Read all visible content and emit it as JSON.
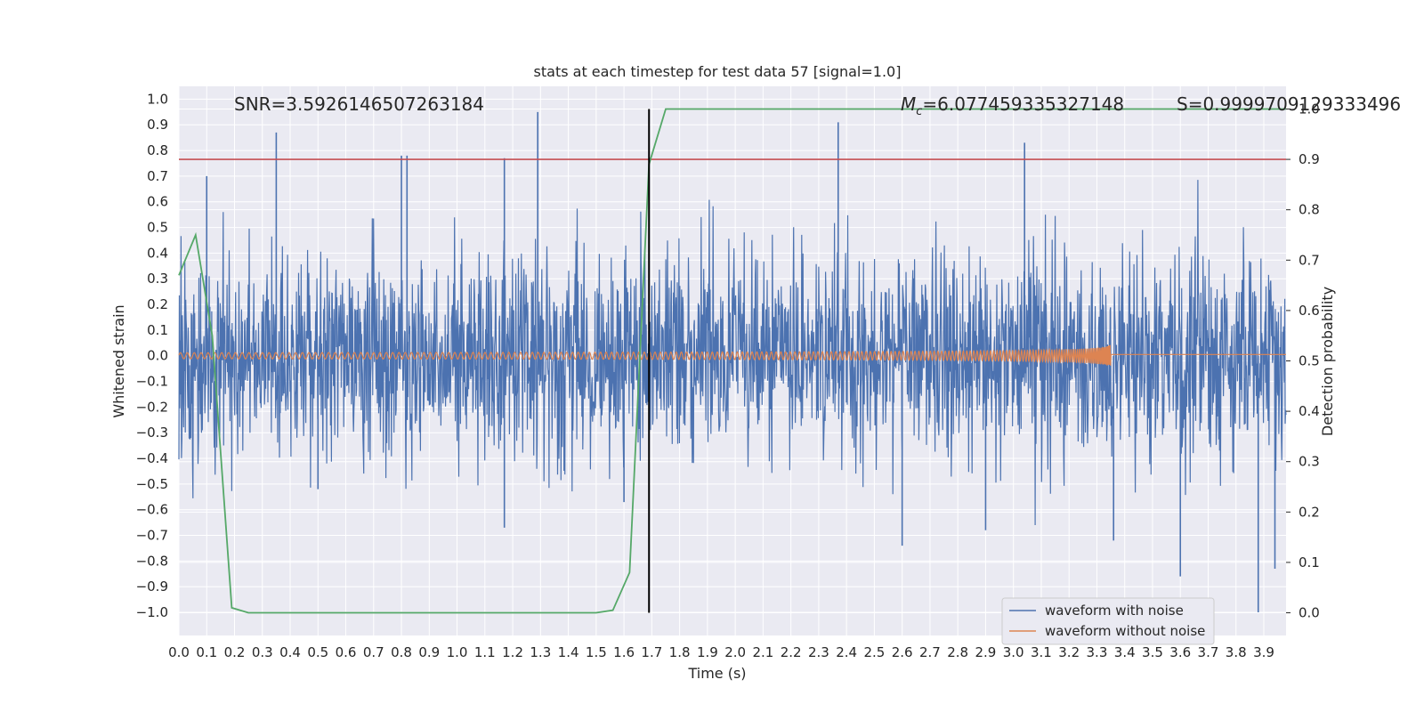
{
  "chart_data": {
    "type": "line",
    "title": "stats at each timestep for test data 57 [signal=1.0]",
    "xlabel": "Time (s)",
    "ylabel": "Whitened strain",
    "y2label": "Detection probability",
    "xlim": [
      0.0,
      3.98
    ],
    "ylim": [
      -1.09,
      1.05
    ],
    "y2lim": [
      -0.045,
      1.045
    ],
    "x_ticks": [
      0.0,
      0.1,
      0.2,
      0.3,
      0.4,
      0.5,
      0.6,
      0.7,
      0.8,
      0.9,
      1.0,
      1.1,
      1.2,
      1.3,
      1.4,
      1.5,
      1.6,
      1.7,
      1.8,
      1.9,
      2.0,
      2.1,
      2.2,
      2.3,
      2.4,
      2.5,
      2.6,
      2.7,
      2.8,
      2.9,
      3.0,
      3.1,
      3.2,
      3.3,
      3.4,
      3.5,
      3.6,
      3.7,
      3.8,
      3.9
    ],
    "y_ticks": [
      -1.0,
      -0.9,
      -0.8,
      -0.7,
      -0.6,
      -0.5,
      -0.4,
      -0.3,
      -0.2,
      -0.1,
      0.0,
      0.1,
      0.2,
      0.3,
      0.4,
      0.5,
      0.6,
      0.7,
      0.8,
      0.9,
      1.0
    ],
    "y2_ticks": [
      0.0,
      0.1,
      0.2,
      0.3,
      0.4,
      0.5,
      0.6,
      0.7,
      0.8,
      0.9,
      1.0
    ],
    "grid": true,
    "legend_position": "lower-right",
    "annotations": {
      "snr": "SNR=3.5926146507263184",
      "mc_symbol": "M",
      "mc_sub": "c",
      "mc_value": "=6.077459335327148",
      "s": "S=0.9999709129333496"
    },
    "series": [
      {
        "name": "waveform with noise",
        "color": "#4c72b0",
        "description_kind": "noise",
        "amplitude_envelope": 0.36,
        "peaks": [
          [
            0.1,
            0.7
          ],
          [
            0.35,
            0.87
          ],
          [
            0.8,
            0.78
          ],
          [
            0.82,
            0.78
          ],
          [
            1.17,
            0.77
          ],
          [
            1.29,
            0.95
          ],
          [
            2.37,
            0.91
          ],
          [
            3.04,
            0.83
          ],
          [
            1.17,
            -0.67
          ],
          [
            3.6,
            -0.86
          ],
          [
            3.88,
            -1.0
          ],
          [
            3.94,
            -0.83
          ],
          [
            2.6,
            -0.74
          ],
          [
            2.9,
            -0.68
          ],
          [
            3.36,
            -0.72
          ],
          [
            1.6,
            -0.57
          ],
          [
            0.5,
            -0.52
          ]
        ]
      },
      {
        "name": "waveform without noise",
        "color": "#dd8452",
        "description_kind": "chirp",
        "base_amplitude": 0.012,
        "peak_amplitude": 0.1,
        "merger_time": 3.35,
        "post_merger_value": 0.005
      },
      {
        "name": "",
        "axis": "right",
        "color": "#55a868",
        "x": [
          0.0,
          0.06,
          0.12,
          0.19,
          0.25,
          0.5,
          1.0,
          1.5,
          1.56,
          1.62,
          1.69,
          1.75,
          2.0,
          3.98
        ],
        "y": [
          0.67,
          0.75,
          0.55,
          0.01,
          0.0,
          0.0,
          0.0,
          0.0,
          0.005,
          0.08,
          0.89,
          1.0,
          1.0,
          1.0
        ]
      }
    ],
    "threshold": {
      "axis": "right",
      "value": 0.9,
      "color": "#c44e52"
    },
    "marker_line": {
      "x": 1.69,
      "color": "#000000"
    }
  }
}
